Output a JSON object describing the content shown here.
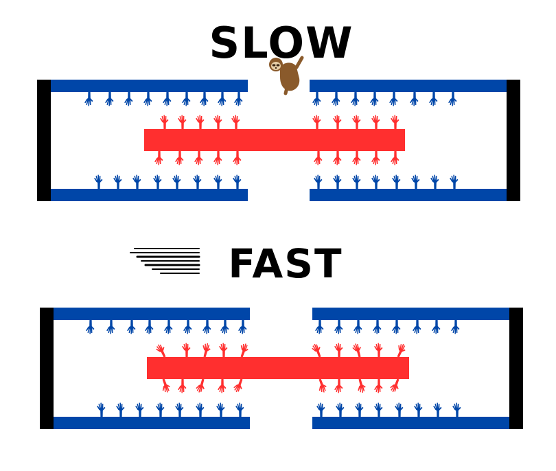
{
  "panels": [
    {
      "id": "slow",
      "label": "SLOW",
      "label_icon": "sloth-icon",
      "thin_filament_color": "#0046a8",
      "thick_filament_color": "#ff2f2f",
      "z_disc_color": "#000000"
    },
    {
      "id": "fast",
      "label": "FAST",
      "label_icon": "speed-lines-icon",
      "thin_filament_color": "#0046a8",
      "thick_filament_color": "#ff2f2f",
      "z_disc_color": "#000000"
    }
  ]
}
